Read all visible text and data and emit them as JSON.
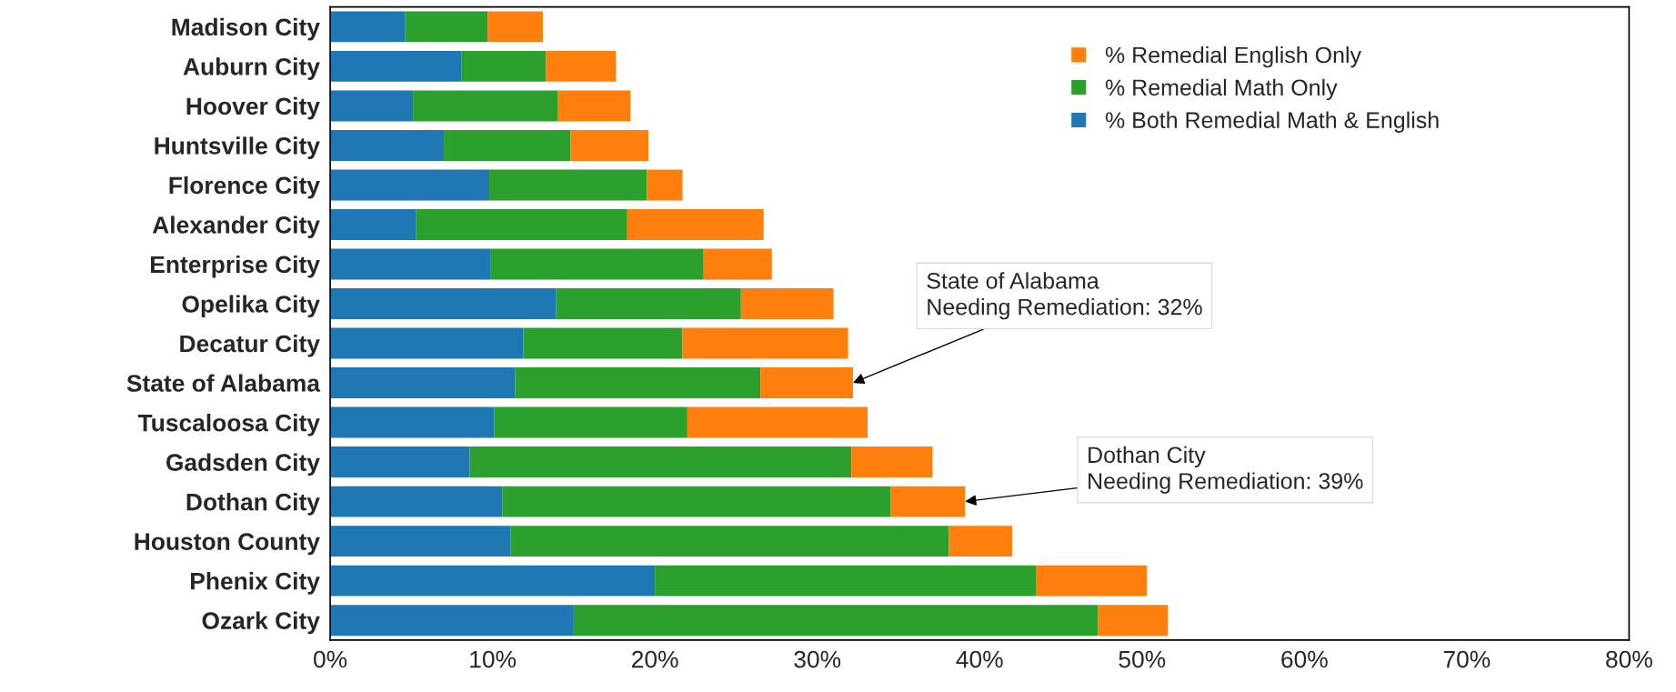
{
  "chart_data": {
    "type": "bar",
    "orientation": "horizontal",
    "stacked": true,
    "categories": [
      "Madison City",
      "Auburn City",
      "Hoover City",
      "Huntsville City",
      "Florence City",
      "Alexander City",
      "Enterprise City",
      "Opelika City",
      "Decatur City",
      "State of Alabama",
      "Tuscaloosa City",
      "Gadsden City",
      "Dothan City",
      "Houston County",
      "Phenix City",
      "Ozark City"
    ],
    "series": [
      {
        "name": "% Both Remedial Math & English",
        "color": "#1f77b4",
        "values": [
          4.6,
          8.1,
          5.1,
          7.0,
          9.8,
          5.3,
          9.9,
          13.9,
          11.9,
          11.4,
          10.1,
          8.6,
          10.6,
          11.1,
          20.0,
          15.0
        ]
      },
      {
        "name": "% Remedial Math Only",
        "color": "#2ca02c",
        "values": [
          5.1,
          5.2,
          8.9,
          7.8,
          9.7,
          13.0,
          13.1,
          11.4,
          9.8,
          15.1,
          11.9,
          23.5,
          23.9,
          27.0,
          23.5,
          32.3
        ]
      },
      {
        "name": "% Remedial English Only",
        "color": "#ff7f0e",
        "values": [
          3.4,
          4.3,
          4.5,
          4.8,
          2.2,
          8.4,
          4.2,
          5.7,
          10.2,
          5.7,
          11.1,
          5.0,
          4.6,
          3.9,
          6.8,
          4.3
        ]
      }
    ],
    "xlim": [
      0,
      80
    ],
    "xticks": [
      {
        "value": 0,
        "label": "0%"
      },
      {
        "value": 10,
        "label": "10%"
      },
      {
        "value": 20,
        "label": "20%"
      },
      {
        "value": 30,
        "label": "30%"
      },
      {
        "value": 40,
        "label": "40%"
      },
      {
        "value": 50,
        "label": "50%"
      },
      {
        "value": 60,
        "label": "60%"
      },
      {
        "value": 70,
        "label": "70%"
      },
      {
        "value": 80,
        "label": "80%"
      }
    ],
    "grid": false,
    "legend": "top right",
    "annotations": [
      {
        "text": "State of Alabama\nNeeding Remediation: 32%",
        "x": 32.2,
        "y": "State of Alabama"
      },
      {
        "text": "Dothan City\nNeeding Remediation: 39%",
        "x": 39.1,
        "y": "Dothan City"
      }
    ]
  }
}
